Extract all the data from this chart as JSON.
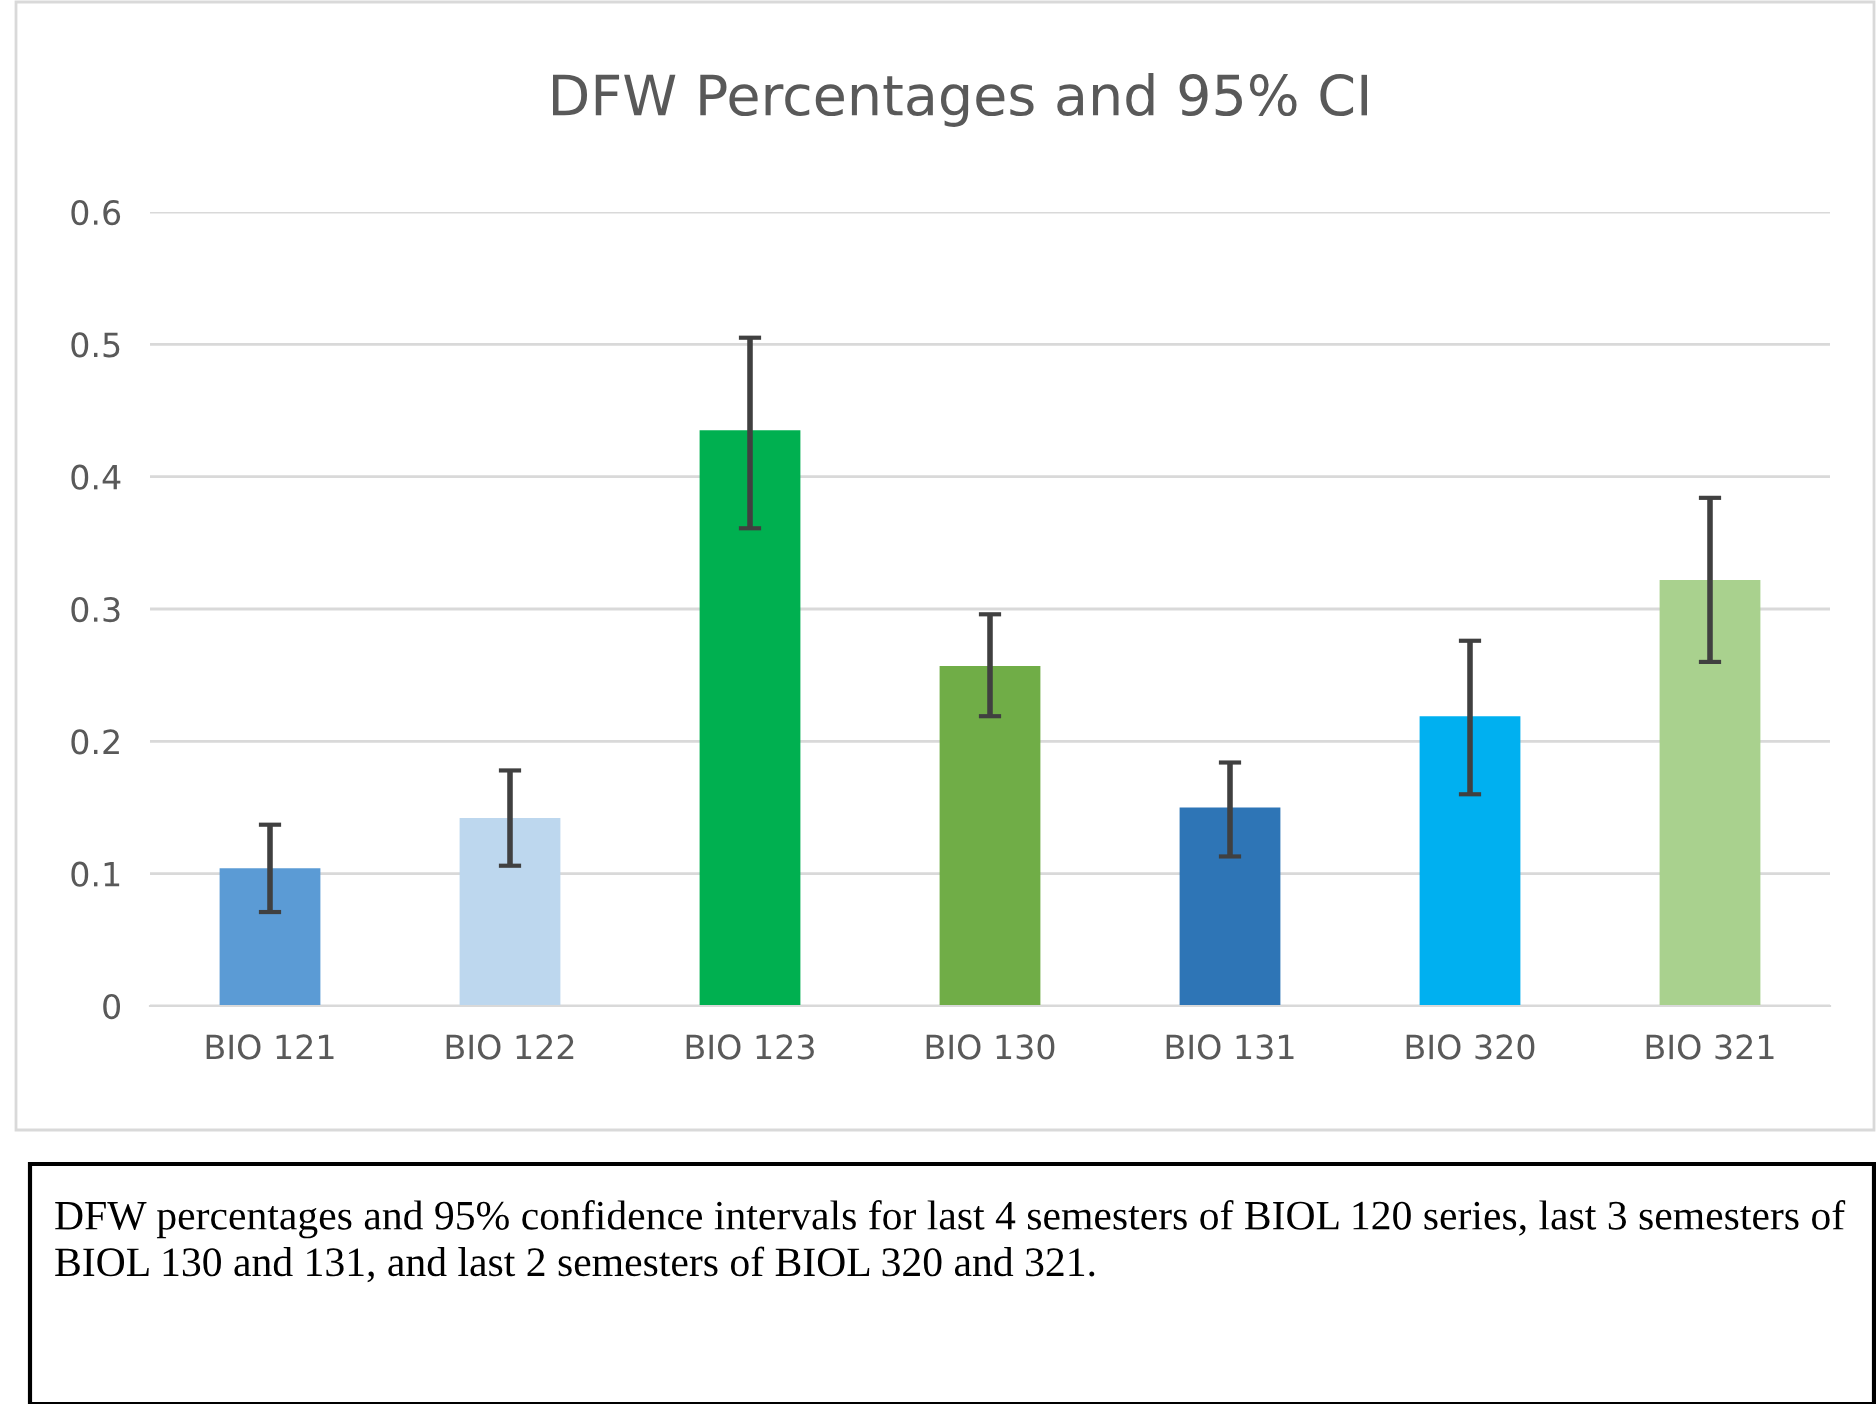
{
  "chart_data": {
    "type": "bar",
    "title": "DFW Percentages and 95% CI",
    "categories": [
      "BIO 121",
      "BIO 122",
      "BIO 123",
      "BIO 130",
      "BIO 131",
      "BIO 320",
      "BIO 321"
    ],
    "values": [
      0.104,
      0.142,
      0.435,
      0.257,
      0.15,
      0.219,
      0.322
    ],
    "errors": [
      [
        0.071,
        0.137
      ],
      [
        0.106,
        0.178
      ],
      [
        0.361,
        0.505
      ],
      [
        0.219,
        0.296
      ],
      [
        0.113,
        0.184
      ],
      [
        0.16,
        0.276
      ],
      [
        0.26,
        0.384
      ]
    ],
    "colors": [
      "#5b9bd5",
      "#bdd7ee",
      "#00b050",
      "#70ad47",
      "#2e75b6",
      "#00b0f0",
      "#a9d18e"
    ],
    "ylim": [
      0,
      0.6
    ],
    "yticks": [
      0,
      0.1,
      0.2,
      0.3,
      0.4,
      0.5,
      0.6
    ],
    "grid": "y",
    "annotations": [
      "DFW percentages and 95% confidence intervals for last 4 semesters of BIOL 120 series, last 3 semesters of BIOL 130 and 131, and last 2 semesters of BIOL 320 and 321."
    ]
  }
}
